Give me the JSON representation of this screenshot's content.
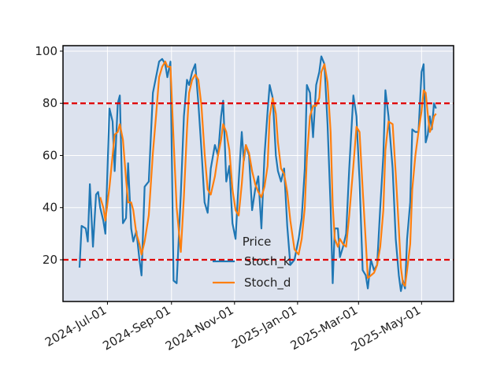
{
  "chart_data": {
    "type": "line",
    "x": [
      "2024-06-04",
      "2024-06-06",
      "2024-06-10",
      "2024-06-12",
      "2024-06-14",
      "2024-06-17",
      "2024-06-20",
      "2024-06-22",
      "2024-06-24",
      "2024-06-27",
      "2024-06-29",
      "2024-07-03",
      "2024-07-06",
      "2024-07-08",
      "2024-07-11",
      "2024-07-13",
      "2024-07-16",
      "2024-07-19",
      "2024-07-21",
      "2024-07-24",
      "2024-07-26",
      "2024-07-29",
      "2024-08-01",
      "2024-08-03",
      "2024-08-06",
      "2024-08-10",
      "2024-08-14",
      "2024-08-17",
      "2024-08-20",
      "2024-08-23",
      "2024-08-26",
      "2024-08-28",
      "2024-08-31",
      "2024-09-03",
      "2024-09-06",
      "2024-09-10",
      "2024-09-13",
      "2024-09-16",
      "2024-09-18",
      "2024-09-21",
      "2024-09-24",
      "2024-09-27",
      "2024-09-30",
      "2024-10-03",
      "2024-10-06",
      "2024-10-09",
      "2024-10-13",
      "2024-10-16",
      "2024-10-19",
      "2024-10-21",
      "2024-10-24",
      "2024-10-27",
      "2024-10-30",
      "2024-11-02",
      "2024-11-05",
      "2024-11-08",
      "2024-11-10",
      "2024-11-12",
      "2024-11-15",
      "2024-11-18",
      "2024-11-21",
      "2024-11-24",
      "2024-11-27",
      "2024-11-30",
      "2024-12-03",
      "2024-12-05",
      "2024-12-08",
      "2024-12-11",
      "2024-12-13",
      "2024-12-16",
      "2024-12-19",
      "2024-12-22",
      "2024-12-25",
      "2024-12-29",
      "2025-01-02",
      "2025-01-05",
      "2025-01-08",
      "2025-01-10",
      "2025-01-13",
      "2025-01-16",
      "2025-01-19",
      "2025-01-22",
      "2025-01-24",
      "2025-01-27",
      "2025-01-30",
      "2025-02-02",
      "2025-02-04",
      "2025-02-06",
      "2025-02-09",
      "2025-02-11",
      "2025-02-14",
      "2025-02-17",
      "2025-02-20",
      "2025-02-24",
      "2025-02-27",
      "2025-03-02",
      "2025-03-05",
      "2025-03-08",
      "2025-03-10",
      "2025-03-13",
      "2025-03-16",
      "2025-03-19",
      "2025-03-22",
      "2025-03-25",
      "2025-03-27",
      "2025-03-30",
      "2025-04-03",
      "2025-04-06",
      "2025-04-09",
      "2025-04-11",
      "2025-04-13",
      "2025-04-15",
      "2025-04-17",
      "2025-04-20",
      "2025-04-22",
      "2025-04-25",
      "2025-04-28",
      "2025-05-01",
      "2025-05-03",
      "2025-05-05",
      "2025-05-07",
      "2025-05-09",
      "2025-05-11",
      "2025-05-13",
      "2025-05-15"
    ],
    "series": [
      {
        "name": "Stoch_k",
        "color": "#1f77b4",
        "values": [
          17,
          33,
          32,
          27,
          49,
          25,
          45,
          46,
          40,
          35,
          30,
          78,
          73,
          54,
          80,
          83,
          34,
          36,
          57,
          32,
          27,
          31,
          20,
          14,
          48,
          50,
          84,
          90,
          96,
          97,
          95,
          90,
          96,
          12,
          11,
          45,
          75,
          89,
          87,
          92,
          95,
          80,
          62,
          42,
          38,
          55,
          64,
          60,
          75,
          81,
          50,
          56,
          34,
          28,
          50,
          69,
          58,
          64,
          60,
          39,
          47,
          52,
          32,
          60,
          77,
          87,
          82,
          60,
          54,
          50,
          55,
          33,
          18,
          20,
          28,
          36,
          55,
          87,
          84,
          67,
          87,
          92,
          98,
          95,
          72,
          40,
          11,
          32,
          32,
          21,
          25,
          30,
          55,
          83,
          75,
          50,
          16,
          14,
          9,
          20,
          16,
          18,
          40,
          60,
          85,
          75,
          55,
          28,
          14,
          8,
          12,
          9,
          28,
          42,
          70,
          69,
          69,
          92,
          95,
          65,
          68,
          75,
          70,
          80,
          78
        ]
      },
      {
        "name": "Stoch_d",
        "color": "#ff7f0e",
        "values": [
          null,
          null,
          null,
          null,
          null,
          null,
          null,
          null,
          44,
          40,
          35,
          48,
          60,
          68,
          69,
          72,
          66,
          51,
          42,
          42,
          39,
          30,
          26,
          22,
          27,
          37,
          61,
          75,
          90,
          94,
          96,
          94,
          94,
          66,
          40,
          23,
          44,
          70,
          84,
          89,
          91,
          89,
          79,
          61,
          47,
          45,
          52,
          60,
          66,
          72,
          69,
          62,
          47,
          39,
          37,
          49,
          59,
          64,
          61,
          54,
          49,
          46,
          44,
          48,
          56,
          75,
          82,
          76,
          65,
          55,
          53,
          46,
          35,
          24,
          22,
          28,
          40,
          59,
          75,
          79,
          79,
          82,
          92,
          95,
          88,
          69,
          41,
          28,
          25,
          28,
          26,
          25,
          37,
          56,
          71,
          69,
          47,
          27,
          13,
          14,
          15,
          18,
          25,
          39,
          62,
          73,
          72,
          53,
          32,
          17,
          11,
          10,
          16,
          26,
          47,
          60,
          69,
          77,
          85,
          84,
          76,
          69,
          71,
          75,
          76
        ]
      }
    ],
    "hlines": [
      {
        "value": 80,
        "color": "#e00000"
      },
      {
        "value": 20,
        "color": "#e00000"
      }
    ],
    "legend_title": "Price",
    "legend_loc": "lower center",
    "xlim": [
      "2024-05-19",
      "2025-06-01"
    ],
    "xticks": [
      {
        "value": "2024-07-01",
        "label": "2024-Jul-01"
      },
      {
        "value": "2024-09-01",
        "label": "2024-Sep-01"
      },
      {
        "value": "2024-11-01",
        "label": "2024-Nov-01"
      },
      {
        "value": "2025-01-01",
        "label": "2025-Jan-01"
      },
      {
        "value": "2025-03-01",
        "label": "2025-Mar-01"
      },
      {
        "value": "2025-05-01",
        "label": "2025-May-01"
      }
    ],
    "ylim": [
      4,
      102.1
    ],
    "yticks": [
      20,
      40,
      60,
      80,
      100
    ],
    "grid": true
  }
}
